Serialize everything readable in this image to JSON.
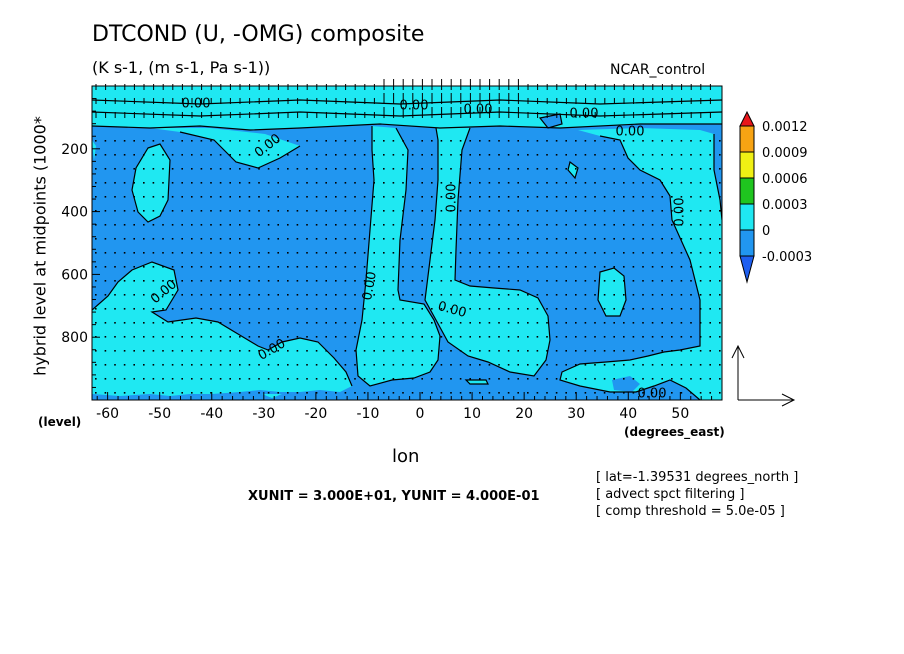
{
  "chart_data": {
    "type": "heatmap",
    "title": "DTCOND (U, -OMG) composite",
    "subtitle": "(K s-1, (m s-1, Pa s-1))",
    "run_label": "NCAR_control",
    "xlabel": "lon",
    "x_units_label": "(degrees_east)",
    "ylabel": "hybrid level at midpoints (1000*",
    "y_units_label": "(level)",
    "xlim": [
      -63,
      58
    ],
    "ylim": [
      1000,
      0
    ],
    "x_ticks": [
      -60,
      -50,
      -40,
      -30,
      -20,
      -10,
      0,
      10,
      20,
      30,
      40,
      50
    ],
    "x_tick_labels": [
      "-60",
      "-50",
      "-40",
      "-30",
      "-20",
      "-10",
      "0",
      "10",
      "20",
      "30",
      "40",
      "50"
    ],
    "y_ticks": [
      200,
      400,
      600,
      800
    ],
    "y_tick_labels": [
      "200",
      "400",
      "600",
      "800"
    ],
    "colorbar": {
      "levels": [
        "0.0012",
        "0.0009",
        "0.0006",
        "0.0003",
        "0",
        "-0.0003"
      ],
      "colors": [
        "#e8171b",
        "#f7a313",
        "#f0f014",
        "#1fc51f",
        "#1fe8f2",
        "#2196f0",
        "#1e5ff0"
      ]
    },
    "contour_label": "0.00",
    "vector_unit_text": "XUNIT = 3.000E+01, YUNIT = 4.000E-01",
    "notes": [
      "[ lat=-1.39531 degrees_north ]",
      "[ advect spct filtering ]",
      "[ comp threshold = 5.0e-05 ]"
    ],
    "grid": false
  }
}
